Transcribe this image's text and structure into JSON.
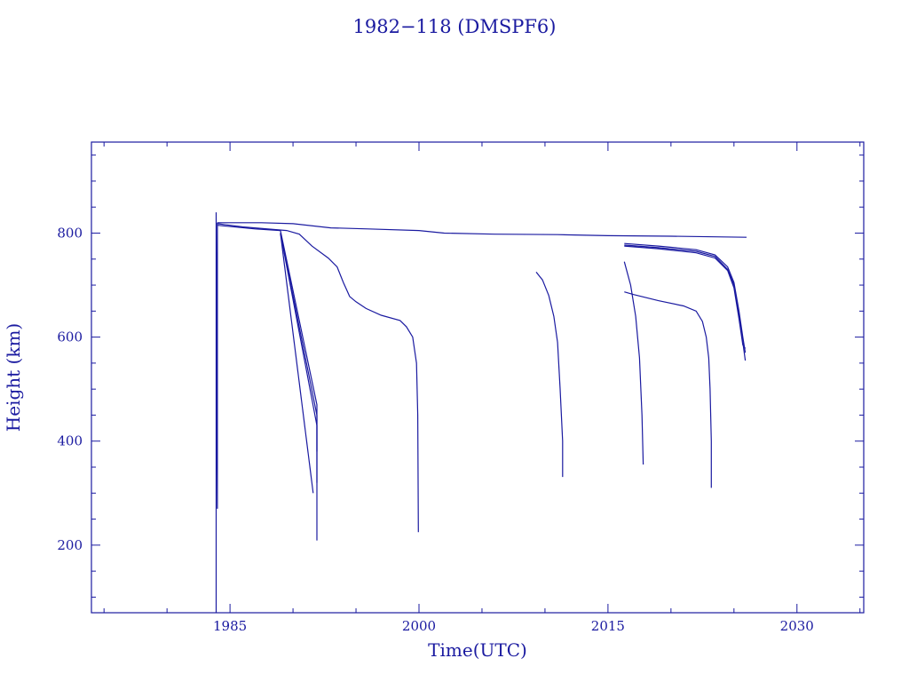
{
  "chart_data": {
    "type": "line",
    "title": "1982−118 (DMSPF6)",
    "xlabel": "Time(UTC)",
    "ylabel": "Height (km)",
    "xlim": [
      1974,
      2035.3
    ],
    "ylim": [
      70,
      975
    ],
    "x_ticks": [
      1985,
      2000,
      2015,
      2030
    ],
    "x_tick_labels": [
      "1985",
      "2000",
      "2015",
      "2030"
    ],
    "y_ticks": [
      200,
      400,
      600,
      800
    ],
    "y_tick_labels": [
      "200",
      "400",
      "600",
      "800"
    ],
    "grid": false,
    "legend": "none",
    "color": "#1a1aa0",
    "series": [
      {
        "points": [
          [
            1983.9,
            70
          ],
          [
            1983.9,
            840
          ],
          [
            1984.0,
            270
          ],
          [
            1984.0,
            820
          ]
        ]
      },
      {
        "points": [
          [
            1984.0,
            820
          ],
          [
            1987.5,
            820
          ],
          [
            1990.0,
            818
          ],
          [
            1993.0,
            810
          ],
          [
            1996.0,
            808
          ],
          [
            2000.0,
            805
          ],
          [
            2002.0,
            800
          ],
          [
            2006.0,
            798
          ],
          [
            2011.0,
            797
          ],
          [
            2015.0,
            795
          ],
          [
            2020.0,
            794
          ],
          [
            2026.0,
            792
          ]
        ]
      },
      {
        "points": [
          [
            1984.0,
            818
          ],
          [
            1986.0,
            812
          ],
          [
            1989.5,
            805
          ],
          [
            1990.5,
            798
          ],
          [
            1991.5,
            775
          ],
          [
            1992.8,
            752
          ],
          [
            1993.5,
            735
          ],
          [
            1994.0,
            705
          ],
          [
            1994.5,
            678
          ],
          [
            1995.0,
            668
          ],
          [
            1995.8,
            655
          ],
          [
            1997.0,
            642
          ],
          [
            1998.5,
            632
          ],
          [
            1999.0,
            620
          ],
          [
            1999.5,
            600
          ],
          [
            1999.8,
            550
          ],
          [
            1999.9,
            450
          ],
          [
            1999.95,
            225
          ]
        ]
      },
      {
        "points": [
          [
            1984.0,
            815
          ],
          [
            1987.0,
            808
          ],
          [
            1989.0,
            805
          ],
          [
            1991.9,
            470
          ],
          [
            1991.9,
            209
          ]
        ]
      },
      {
        "points": [
          [
            1989.0,
            800
          ],
          [
            1991.6,
            300
          ]
        ]
      },
      {
        "points": [
          [
            1989.0,
            800
          ],
          [
            1991.9,
            430
          ],
          [
            1991.9,
            320
          ]
        ]
      },
      {
        "points": [
          [
            1989.0,
            800
          ],
          [
            1991.9,
            450
          ],
          [
            1991.9,
            380
          ]
        ]
      },
      {
        "points": [
          [
            2009.3,
            725
          ],
          [
            2009.8,
            710
          ],
          [
            2010.3,
            680
          ],
          [
            2010.7,
            640
          ],
          [
            2011.0,
            590
          ],
          [
            2011.2,
            500
          ],
          [
            2011.4,
            400
          ],
          [
            2011.4,
            331
          ]
        ]
      },
      {
        "points": [
          [
            2016.3,
            745
          ],
          [
            2016.8,
            700
          ],
          [
            2017.2,
            640
          ],
          [
            2017.5,
            560
          ],
          [
            2017.7,
            450
          ],
          [
            2017.8,
            355
          ]
        ]
      },
      {
        "points": [
          [
            2016.3,
            687
          ],
          [
            2017.0,
            682
          ],
          [
            2019.0,
            670
          ],
          [
            2021.0,
            660
          ],
          [
            2022.0,
            650
          ],
          [
            2022.5,
            630
          ],
          [
            2022.8,
            600
          ],
          [
            2023.0,
            560
          ],
          [
            2023.1,
            500
          ],
          [
            2023.2,
            400
          ],
          [
            2023.2,
            310
          ]
        ]
      },
      {
        "points": [
          [
            2016.3,
            780
          ],
          [
            2019.0,
            775
          ],
          [
            2022.0,
            768
          ],
          [
            2023.5,
            758
          ],
          [
            2024.5,
            735
          ],
          [
            2025.0,
            705
          ],
          [
            2025.4,
            650
          ],
          [
            2025.7,
            600
          ],
          [
            2025.9,
            570
          ]
        ]
      },
      {
        "points": [
          [
            2016.3,
            777
          ],
          [
            2019.0,
            772
          ],
          [
            2022.0,
            765
          ],
          [
            2023.5,
            755
          ],
          [
            2024.5,
            730
          ],
          [
            2025.0,
            700
          ],
          [
            2025.4,
            640
          ],
          [
            2025.7,
            590
          ],
          [
            2025.9,
            555
          ]
        ]
      },
      {
        "points": [
          [
            2016.3,
            775
          ],
          [
            2019.0,
            770
          ],
          [
            2022.0,
            762
          ],
          [
            2023.5,
            752
          ],
          [
            2024.5,
            728
          ],
          [
            2025.0,
            695
          ],
          [
            2025.4,
            635
          ],
          [
            2025.7,
            585
          ],
          [
            2025.9,
            578
          ]
        ]
      }
    ]
  }
}
